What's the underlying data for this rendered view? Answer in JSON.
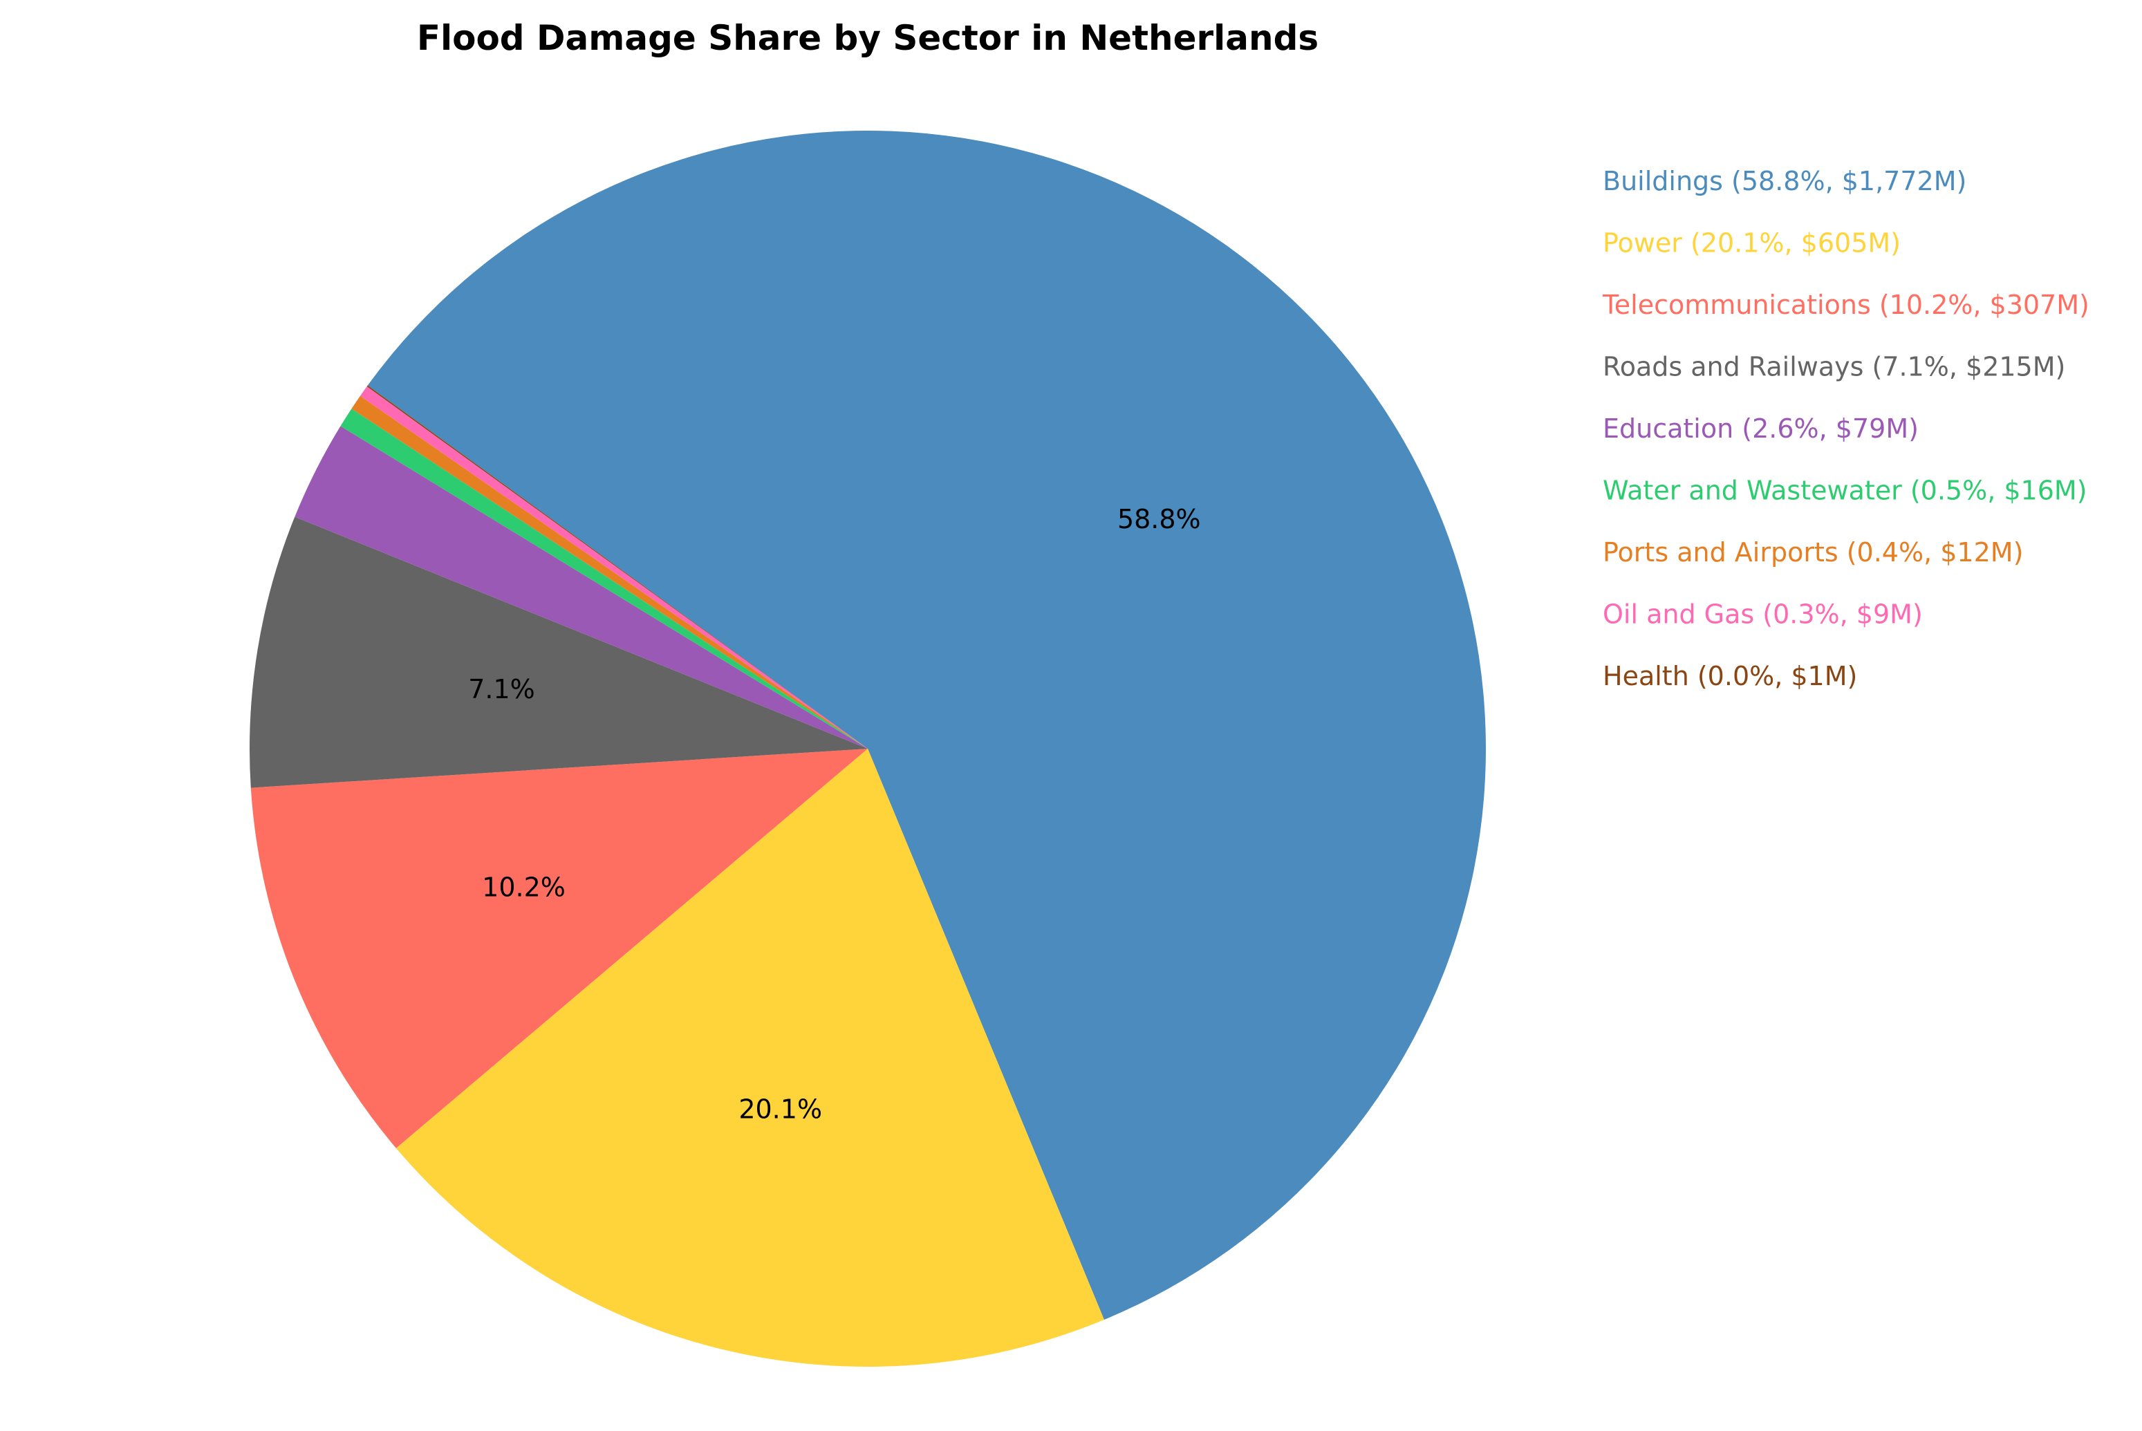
{
  "chart_data": {
    "type": "pie",
    "title": "Flood Damage Share by Sector in Netherlands",
    "unit": "$M",
    "start_angle_deg": 144,
    "direction": "clockwise",
    "legend_position": "right",
    "slices": [
      {
        "name": "Buildings",
        "percent": 58.8,
        "value": 1772,
        "color": "#4B8BBE",
        "label": "58.8%",
        "legend": "Buildings (58.8%, $1,772M)"
      },
      {
        "name": "Power",
        "percent": 20.1,
        "value": 605,
        "color": "#FFD43B",
        "label": "20.1%",
        "legend": "Power (20.1%, $605M)"
      },
      {
        "name": "Telecommunications",
        "percent": 10.2,
        "value": 307,
        "color": "#FF6F61",
        "label": "10.2%",
        "legend": "Telecommunications (10.2%, $307M)"
      },
      {
        "name": "Roads and Railways",
        "percent": 7.1,
        "value": 215,
        "color": "#646464",
        "label": "7.1%",
        "legend": "Roads and Railways (7.1%, $215M)"
      },
      {
        "name": "Education",
        "percent": 2.6,
        "value": 79,
        "color": "#9B59B6",
        "label": "",
        "legend": "Education (2.6%, $79M)"
      },
      {
        "name": "Water and Wastewater",
        "percent": 0.5,
        "value": 16,
        "color": "#2ECC71",
        "label": "",
        "legend": "Water and Wastewater (0.5%, $16M)"
      },
      {
        "name": "Ports and Airports",
        "percent": 0.4,
        "value": 12,
        "color": "#E67E22",
        "label": "",
        "legend": "Ports and Airports (0.4%, $12M)"
      },
      {
        "name": "Oil and Gas",
        "percent": 0.3,
        "value": 9,
        "color": "#FF69B4",
        "label": "",
        "legend": "Oil and Gas (0.3%, $9M)"
      },
      {
        "name": "Health",
        "percent": 0.0,
        "value": 1,
        "color": "#8B4513",
        "label": "",
        "legend": "Health (0.0%, $1M)"
      }
    ]
  }
}
